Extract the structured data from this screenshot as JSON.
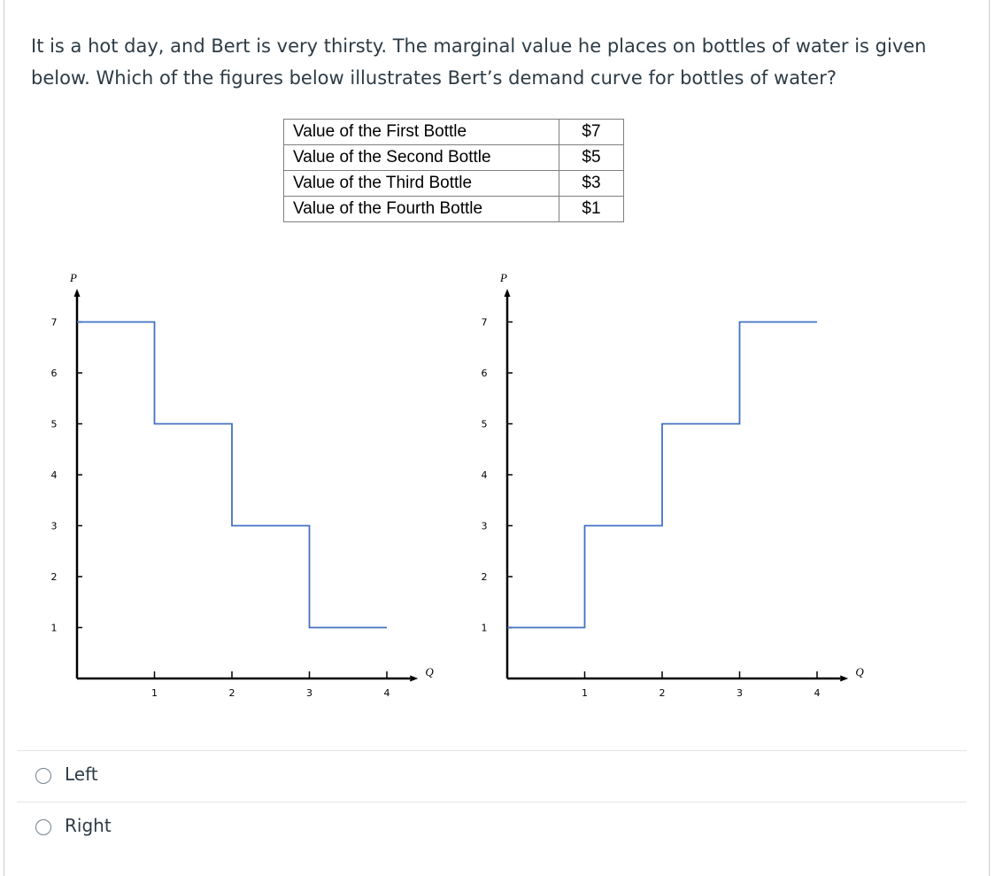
{
  "question": {
    "text": "It is a hot day, and Bert is very thirsty. The marginal value he places on bottles of water is given below. Which of the figures below illustrates Bert’s demand curve for bottles of water?"
  },
  "value_table": {
    "rows": [
      {
        "label": "Value of the First Bottle",
        "value": "$7"
      },
      {
        "label": "Value of the Second Bottle",
        "value": "$5"
      },
      {
        "label": "Value of the Third Bottle",
        "value": "$3"
      },
      {
        "label": "Value of the Fourth Bottle",
        "value": "$1"
      }
    ]
  },
  "chart_data": [
    {
      "type": "line",
      "name": "left",
      "xlabel": "Q",
      "ylabel": "P",
      "x_ticks": [
        "1",
        "2",
        "3",
        "4"
      ],
      "y_ticks": [
        "1",
        "2",
        "3",
        "4",
        "5",
        "6",
        "7"
      ],
      "xlim": [
        0,
        4.5
      ],
      "ylim": [
        0,
        7.5
      ],
      "line_color": "#4472c4",
      "step_points": [
        [
          0,
          7
        ],
        [
          1,
          7
        ],
        [
          1,
          5
        ],
        [
          2,
          5
        ],
        [
          2,
          3
        ],
        [
          3,
          3
        ],
        [
          3,
          1
        ],
        [
          4,
          1
        ]
      ]
    },
    {
      "type": "line",
      "name": "right",
      "xlabel": "Q",
      "ylabel": "P",
      "x_ticks": [
        "1",
        "2",
        "3",
        "4"
      ],
      "y_ticks": [
        "1",
        "2",
        "3",
        "4",
        "5",
        "6",
        "7"
      ],
      "xlim": [
        0,
        4.5
      ],
      "ylim": [
        0,
        7.5
      ],
      "line_color": "#4472c4",
      "step_points": [
        [
          0,
          1
        ],
        [
          1,
          1
        ],
        [
          1,
          3
        ],
        [
          2,
          3
        ],
        [
          2,
          5
        ],
        [
          3,
          5
        ],
        [
          3,
          7
        ],
        [
          4,
          7
        ]
      ]
    }
  ],
  "answers": [
    {
      "label": "Left"
    },
    {
      "label": "Right"
    }
  ]
}
